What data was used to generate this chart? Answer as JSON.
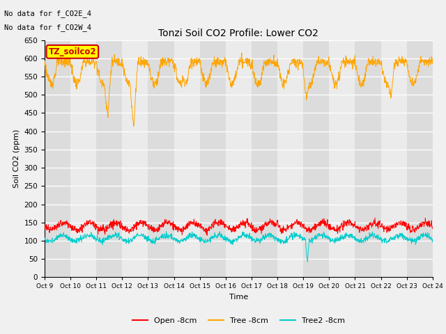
{
  "title": "Tonzi Soil CO2 Profile: Lower CO2",
  "ylabel": "Soil CO2 (ppm)",
  "xlabel": "Time",
  "annotation_lines": [
    "No data for f_CO2E_4",
    "No data for f_CO2W_4"
  ],
  "legend_label_box": "TZ_soilco2",
  "ylim": [
    0,
    650
  ],
  "yticks": [
    0,
    50,
    100,
    150,
    200,
    250,
    300,
    350,
    400,
    450,
    500,
    550,
    600,
    650
  ],
  "xtick_labels": [
    "Oct 9",
    "Oct 10",
    "Oct 11",
    "Oct 12",
    "Oct 13",
    "Oct 14",
    "Oct 15",
    "Oct 16",
    "Oct 17",
    "Oct 18",
    "Oct 19",
    "Oct 20",
    "Oct 21",
    "Oct 22",
    "Oct 23",
    "Oct 24"
  ],
  "series": {
    "open": {
      "label": "Open -8cm",
      "color": "#ff0000"
    },
    "tree": {
      "label": "Tree -8cm",
      "color": "#ffa500"
    },
    "tree2": {
      "label": "Tree2 -8cm",
      "color": "#00cccc"
    }
  },
  "bg_color": "#f0f0f0",
  "plot_bg_light": "#ebebeb",
  "plot_bg_dark": "#dcdcdc",
  "box_color": "#ffff00",
  "box_edge_color": "#cc0000",
  "box_text_color": "#cc0000",
  "n_days": 15,
  "figsize": [
    6.4,
    4.8
  ],
  "dpi": 100
}
